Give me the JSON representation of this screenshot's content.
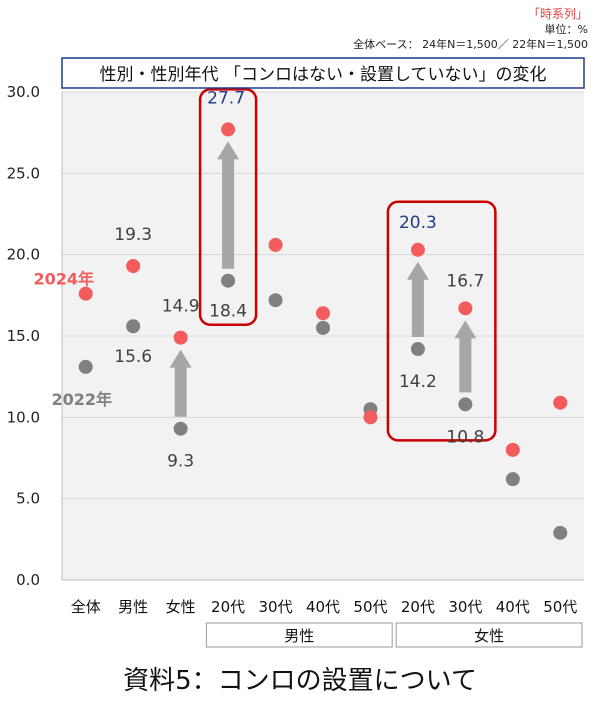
{
  "header": {
    "series_tag": "「時系列」",
    "unit": "単位：%",
    "base": "全体ベース： 24年N＝1,500／ 22年N＝1,500"
  },
  "caption": "資料5：コンロの設置について",
  "colors": {
    "series2024": "#f25c5c",
    "series2022": "#808080",
    "arrow": "#a6a6a6",
    "highlight": "#cc0000",
    "titleBorder": "#1f3c88",
    "valueBlue": "#1f3c88",
    "plotBg": "#f2f2f2",
    "grid": "#d9d9d9"
  },
  "chart_data": {
    "type": "scatter",
    "title": "性別・性別年代 「コンロはない・設置していない」の変化",
    "categories": [
      "全体",
      "男性",
      "女性",
      "20代",
      "30代",
      "40代",
      "50代",
      "20代",
      "30代",
      "40代",
      "50代"
    ],
    "groups": [
      {
        "label": "男性",
        "from": 3,
        "to": 6
      },
      {
        "label": "女性",
        "from": 7,
        "to": 10
      }
    ],
    "ylim": [
      0,
      30
    ],
    "yticks": [
      "0.0",
      "5.0",
      "10.0",
      "15.0",
      "20.0",
      "25.0",
      "30.0"
    ],
    "series": [
      {
        "name": "2024年",
        "values": [
          17.6,
          19.3,
          14.9,
          27.7,
          20.6,
          16.4,
          10.0,
          20.3,
          16.7,
          8.0,
          10.9
        ]
      },
      {
        "name": "2022年",
        "values": [
          13.1,
          15.6,
          9.3,
          18.4,
          17.2,
          15.5,
          10.5,
          14.2,
          10.8,
          6.2,
          2.9
        ]
      }
    ],
    "value_labels": [
      {
        "text": "19.3",
        "series": "2024年",
        "index": 1
      },
      {
        "text": "15.6",
        "series": "2022年",
        "index": 1
      },
      {
        "text": "14.9",
        "series": "2024年",
        "index": 2
      },
      {
        "text": "9.3",
        "series": "2022年",
        "index": 2
      },
      {
        "text": "27.7",
        "series": "2024年",
        "index": 3
      },
      {
        "text": "18.4",
        "series": "2022年",
        "index": 3
      },
      {
        "text": "20.3",
        "series": "2024年",
        "index": 7
      },
      {
        "text": "14.2",
        "series": "2022年",
        "index": 7
      },
      {
        "text": "16.7",
        "series": "2024年",
        "index": 8
      },
      {
        "text": "10.8",
        "series": "2022年",
        "index": 8
      }
    ],
    "arrows_at": [
      2,
      3,
      7,
      8
    ],
    "highlighted": [
      3,
      7
    ],
    "legend_labels": [
      "2024年",
      "2022年"
    ]
  }
}
